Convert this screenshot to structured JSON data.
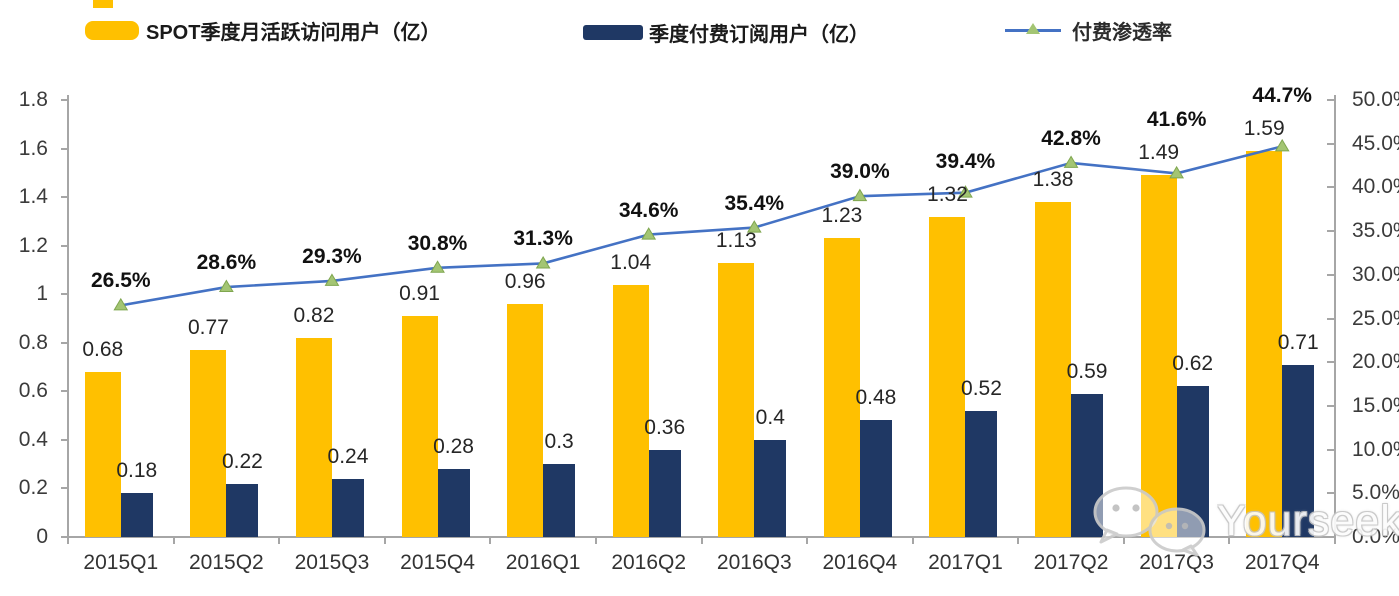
{
  "legend": {
    "items": [
      {
        "label": "SPOT季度月活跃访问用户（亿）"
      },
      {
        "label": "季度付费订阅用户（亿）"
      },
      {
        "label": "付费渗透率"
      }
    ]
  },
  "colors": {
    "mau_bar": "#FFC000",
    "subs_bar": "#1F3864",
    "line": "#4472C4",
    "marker_fill": "#A3C573",
    "marker_edge": "#7FA64F",
    "axis": "#A6A6A6",
    "tick_label": "#3B3B3B",
    "value_label": "#262626"
  },
  "chart_data": {
    "type": "bar",
    "categories": [
      "2015Q1",
      "2015Q2",
      "2015Q3",
      "2015Q4",
      "2016Q1",
      "2016Q2",
      "2016Q3",
      "2016Q4",
      "2017Q1",
      "2017Q2",
      "2017Q3",
      "2017Q4"
    ],
    "series": [
      {
        "name": "SPOT季度月活跃访问用户（亿）",
        "type": "bar",
        "axis": "left",
        "color": "#FFC000",
        "values": [
          0.68,
          0.77,
          0.82,
          0.91,
          0.96,
          1.04,
          1.13,
          1.23,
          1.32,
          1.38,
          1.49,
          1.59
        ],
        "labels": [
          "0.68",
          "0.77",
          "0.82",
          "0.91",
          "0.96",
          "1.04",
          "1.13",
          "1.23",
          "1.32",
          "1.38",
          "1.49",
          "1.59"
        ]
      },
      {
        "name": "季度付费订阅用户（亿）",
        "type": "bar",
        "axis": "left",
        "color": "#1F3864",
        "values": [
          0.18,
          0.22,
          0.24,
          0.28,
          0.3,
          0.36,
          0.4,
          0.48,
          0.52,
          0.59,
          0.62,
          0.71
        ],
        "labels": [
          "0.18",
          "0.22",
          "0.24",
          "0.28",
          "0.3",
          "0.36",
          "0.4",
          "0.48",
          "0.52",
          "0.59",
          "0.62",
          "0.71"
        ]
      },
      {
        "name": "付费渗透率",
        "type": "line",
        "axis": "right",
        "color": "#4472C4",
        "values": [
          26.5,
          28.6,
          29.3,
          30.8,
          31.3,
          34.6,
          35.4,
          39.0,
          39.4,
          42.8,
          41.6,
          44.7
        ],
        "labels": [
          "26.5%",
          "28.6%",
          "29.3%",
          "30.8%",
          "31.3%",
          "34.6%",
          "35.4%",
          "39.0%",
          "39.4%",
          "42.8%",
          "41.6%",
          "44.7%"
        ]
      }
    ],
    "left_axis": {
      "min": 0,
      "max": 1.8,
      "tick_labels": [
        "0",
        "0.2",
        "0.4",
        "0.6",
        "0.8",
        "1",
        "1.2",
        "1.4",
        "1.6",
        "1.8"
      ]
    },
    "right_axis": {
      "min": 0,
      "max": 50,
      "tick_labels": [
        "0.0%",
        "5.0%",
        "10.0%",
        "15.0%",
        "20.0%",
        "25.0%",
        "30.0%",
        "35.0%",
        "40.0%",
        "45.0%",
        "50.0%"
      ]
    },
    "grid": false,
    "legend_position": "top"
  },
  "watermark": {
    "text": "Yourseeker"
  }
}
